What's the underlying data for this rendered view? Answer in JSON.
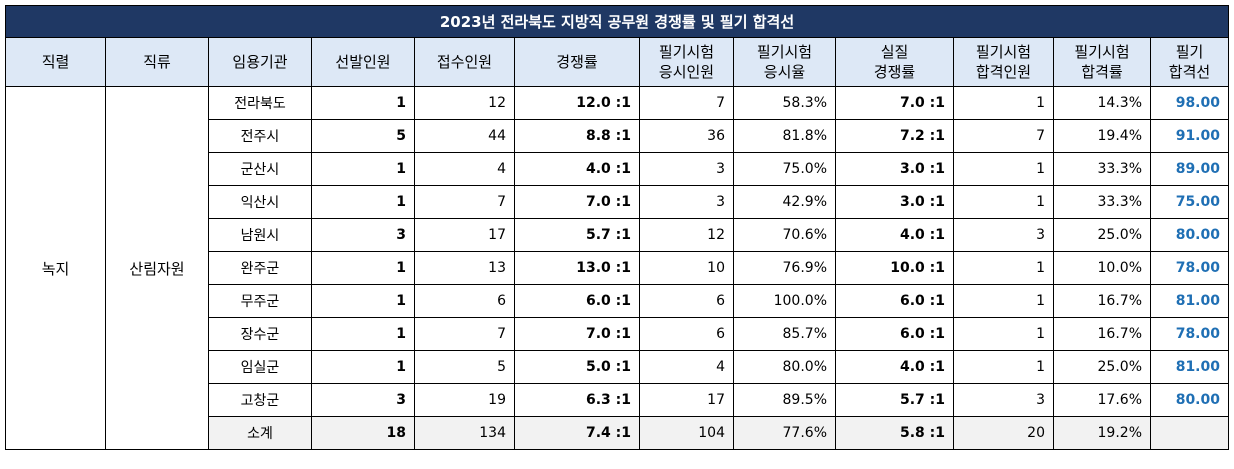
{
  "title": "2023년 전라북도 지방직 공무원 경쟁률 및 필기 합격선",
  "headers": [
    {
      "lines": [
        "직렬"
      ]
    },
    {
      "lines": [
        "직류"
      ]
    },
    {
      "lines": [
        "임용기관"
      ]
    },
    {
      "lines": [
        "선발인원"
      ]
    },
    {
      "lines": [
        "접수인원"
      ]
    },
    {
      "lines": [
        "경쟁률"
      ]
    },
    {
      "lines": [
        "필기시험",
        "응시인원"
      ]
    },
    {
      "lines": [
        "필기시험",
        "응시율"
      ]
    },
    {
      "lines": [
        "실질",
        "경쟁률"
      ]
    },
    {
      "lines": [
        "필기시험",
        "합격인원"
      ]
    },
    {
      "lines": [
        "필기시험",
        "합격률"
      ]
    },
    {
      "lines": [
        "필기",
        "합격선"
      ]
    }
  ],
  "series_name": "녹지",
  "category_name": "산림자원",
  "rows": [
    {
      "agency": "전라북도",
      "selected": "1",
      "applicants": "12",
      "ratio": "12.0 :1",
      "test_takers": "7",
      "take_rate": "58.3%",
      "real_ratio": "7.0 :1",
      "passed": "1",
      "pass_rate": "14.3%",
      "cutoff": "98.00"
    },
    {
      "agency": "전주시",
      "selected": "5",
      "applicants": "44",
      "ratio": "8.8 :1",
      "test_takers": "36",
      "take_rate": "81.8%",
      "real_ratio": "7.2 :1",
      "passed": "7",
      "pass_rate": "19.4%",
      "cutoff": "91.00"
    },
    {
      "agency": "군산시",
      "selected": "1",
      "applicants": "4",
      "ratio": "4.0 :1",
      "test_takers": "3",
      "take_rate": "75.0%",
      "real_ratio": "3.0 :1",
      "passed": "1",
      "pass_rate": "33.3%",
      "cutoff": "89.00"
    },
    {
      "agency": "익산시",
      "selected": "1",
      "applicants": "7",
      "ratio": "7.0 :1",
      "test_takers": "3",
      "take_rate": "42.9%",
      "real_ratio": "3.0 :1",
      "passed": "1",
      "pass_rate": "33.3%",
      "cutoff": "75.00"
    },
    {
      "agency": "남원시",
      "selected": "3",
      "applicants": "17",
      "ratio": "5.7 :1",
      "test_takers": "12",
      "take_rate": "70.6%",
      "real_ratio": "4.0 :1",
      "passed": "3",
      "pass_rate": "25.0%",
      "cutoff": "80.00"
    },
    {
      "agency": "완주군",
      "selected": "1",
      "applicants": "13",
      "ratio": "13.0 :1",
      "test_takers": "10",
      "take_rate": "76.9%",
      "real_ratio": "10.0 :1",
      "passed": "1",
      "pass_rate": "10.0%",
      "cutoff": "78.00"
    },
    {
      "agency": "무주군",
      "selected": "1",
      "applicants": "6",
      "ratio": "6.0 :1",
      "test_takers": "6",
      "take_rate": "100.0%",
      "real_ratio": "6.0 :1",
      "passed": "1",
      "pass_rate": "16.7%",
      "cutoff": "81.00"
    },
    {
      "agency": "장수군",
      "selected": "1",
      "applicants": "7",
      "ratio": "7.0 :1",
      "test_takers": "6",
      "take_rate": "85.7%",
      "real_ratio": "6.0 :1",
      "passed": "1",
      "pass_rate": "16.7%",
      "cutoff": "78.00"
    },
    {
      "agency": "임실군",
      "selected": "1",
      "applicants": "5",
      "ratio": "5.0 :1",
      "test_takers": "4",
      "take_rate": "80.0%",
      "real_ratio": "4.0 :1",
      "passed": "1",
      "pass_rate": "25.0%",
      "cutoff": "81.00"
    },
    {
      "agency": "고창군",
      "selected": "3",
      "applicants": "19",
      "ratio": "6.3 :1",
      "test_takers": "17",
      "take_rate": "89.5%",
      "real_ratio": "5.7 :1",
      "passed": "3",
      "pass_rate": "17.6%",
      "cutoff": "80.00"
    }
  ],
  "subtotal": {
    "agency": "소계",
    "selected": "18",
    "applicants": "134",
    "ratio": "7.4 :1",
    "test_takers": "104",
    "take_rate": "77.6%",
    "real_ratio": "5.8 :1",
    "passed": "20",
    "pass_rate": "19.2%",
    "cutoff": ""
  },
  "colors": {
    "title_bg": "#1f3864",
    "header_bg": "#dde8f6",
    "cutoff_text": "#1f6fb4",
    "subtotal_bg": "#f2f2f2"
  }
}
